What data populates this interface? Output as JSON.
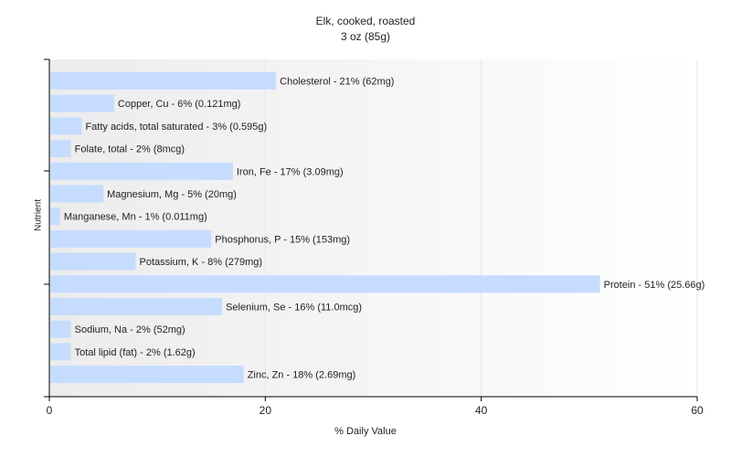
{
  "colors": {
    "bar": "#c6dcff",
    "axis": "#000000",
    "grid": "#e6e6e6"
  },
  "chart_data": {
    "type": "bar",
    "orientation": "horizontal",
    "title": "Elk, cooked, roasted",
    "subtitle": "3 oz (85g)",
    "xlabel": "% Daily Value",
    "ylabel": "Nutrient",
    "xlim": [
      0,
      60
    ],
    "xticks": [
      0,
      20,
      40,
      60
    ],
    "grid": true,
    "categories": [
      "Cholesterol",
      "Copper, Cu",
      "Fatty acids, total saturated",
      "Folate, total",
      "Iron, Fe",
      "Magnesium, Mg",
      "Manganese, Mn",
      "Phosphorus, P",
      "Potassium, K",
      "Protein",
      "Selenium, Se",
      "Sodium, Na",
      "Total lipid (fat)",
      "Zinc, Zn"
    ],
    "values": [
      21,
      6,
      3,
      2,
      17,
      5,
      1,
      15,
      8,
      51,
      16,
      2,
      2,
      18
    ],
    "labels": [
      "Cholesterol - 21% (62mg)",
      "Copper, Cu - 6% (0.121mg)",
      "Fatty acids, total saturated - 3% (0.595g)",
      "Folate, total - 2% (8mcg)",
      "Iron, Fe - 17% (3.09mg)",
      "Magnesium, Mg - 5% (20mg)",
      "Manganese, Mn - 1% (0.011mg)",
      "Phosphorus, P - 15% (153mg)",
      "Potassium, K - 8% (279mg)",
      "Protein - 51% (25.66g)",
      "Selenium, Se - 16% (11.0mcg)",
      "Sodium, Na - 2% (52mg)",
      "Total lipid (fat) - 2% (1.62g)",
      "Zinc, Zn - 18% (2.69mg)"
    ]
  }
}
